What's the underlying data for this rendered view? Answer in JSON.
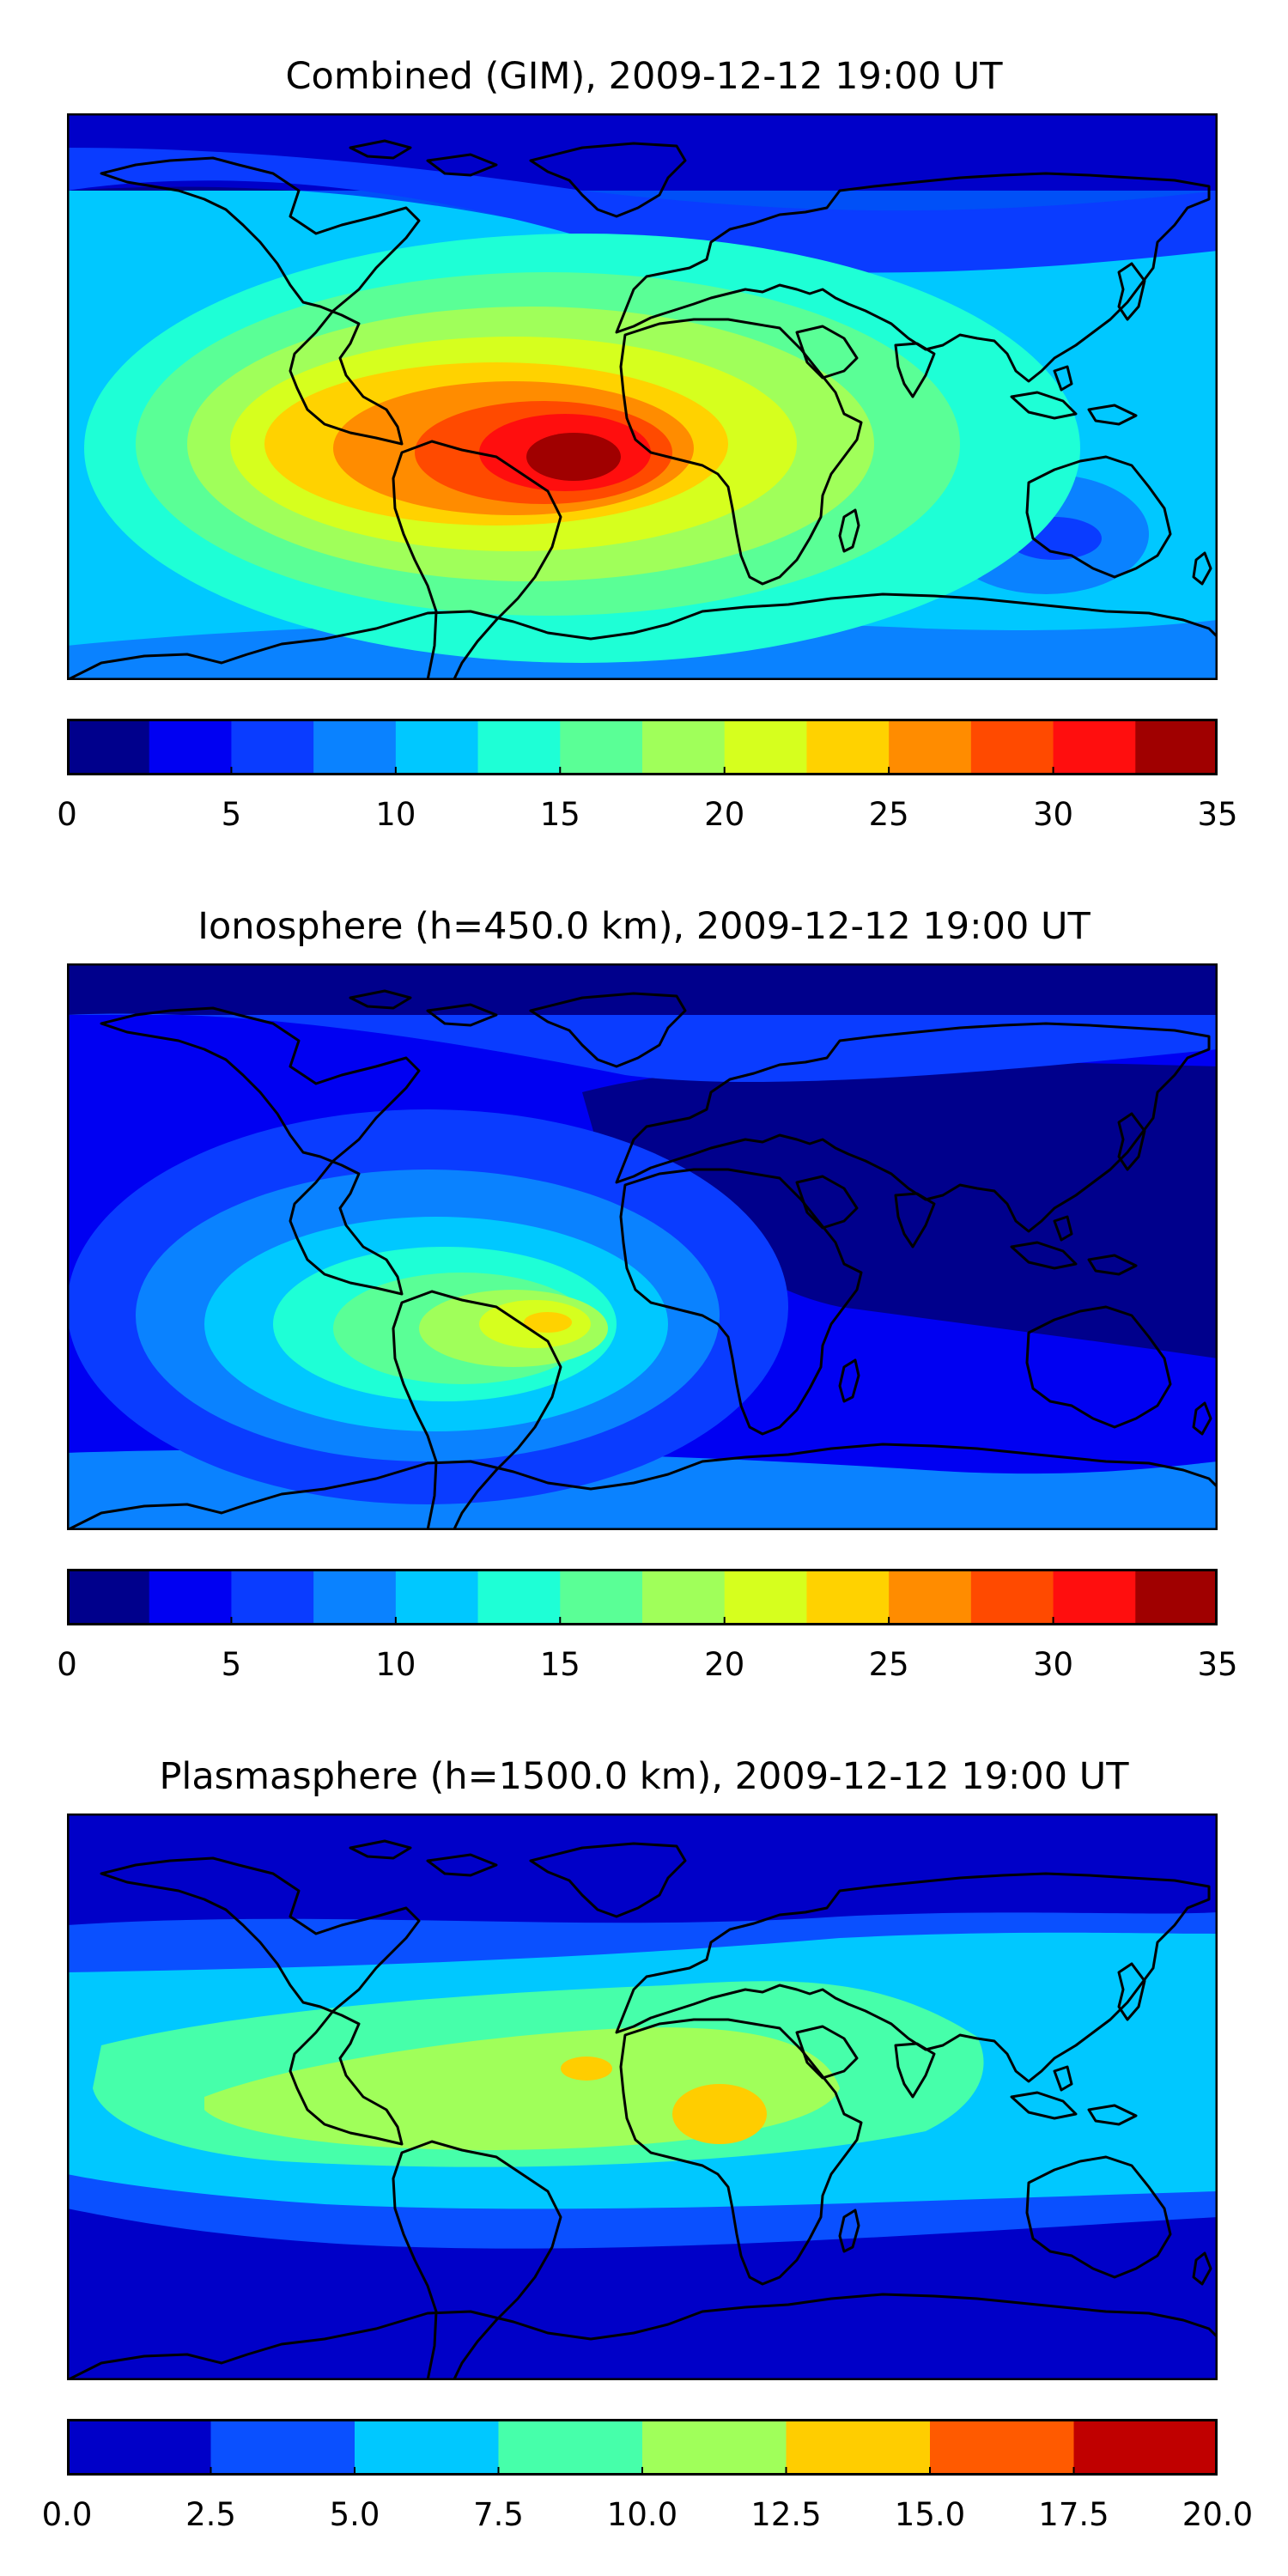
{
  "figure": {
    "panels": [
      {
        "title": "Combined (GIM), 2009-12-12 19:00 UT",
        "colorbar": {
          "ticks": [
            "0",
            "5",
            "10",
            "15",
            "20",
            "25",
            "30",
            "35"
          ],
          "range": [
            0,
            35
          ],
          "colors": [
            "#00008c",
            "#0000f2",
            "#0a3cff",
            "#0a82ff",
            "#00c8ff",
            "#1effd6",
            "#5aff96",
            "#a0ff5a",
            "#d6ff1e",
            "#ffd200",
            "#ff8c00",
            "#ff4a00",
            "#ff0e0e",
            "#a00000"
          ]
        }
      },
      {
        "title": "Ionosphere  (h=450.0 km), 2009-12-12 19:00 UT",
        "colorbar": {
          "ticks": [
            "0",
            "5",
            "10",
            "15",
            "20",
            "25",
            "30",
            "35"
          ],
          "range": [
            0,
            35
          ],
          "colors": [
            "#00008c",
            "#0000f2",
            "#0a3cff",
            "#0a82ff",
            "#00c8ff",
            "#1effd6",
            "#5aff96",
            "#a0ff5a",
            "#d6ff1e",
            "#ffd200",
            "#ff8c00",
            "#ff4a00",
            "#ff0e0e",
            "#a00000"
          ]
        }
      },
      {
        "title": "Plasmasphere (h=1500.0 km), 2009-12-12 19:00 UT",
        "colorbar": {
          "ticks": [
            "0.0",
            "2.5",
            "5.0",
            "7.5",
            "10.0",
            "12.5",
            "15.0",
            "17.5",
            "20.0"
          ],
          "range": [
            0,
            20
          ],
          "colors": [
            "#0000c8",
            "#0a50ff",
            "#00c8ff",
            "#46ffaa",
            "#a0ff5a",
            "#ffcd00",
            "#ff5a00",
            "#c00000"
          ]
        }
      }
    ]
  },
  "chart_data": [
    {
      "type": "heatmap",
      "title": "Combined (GIM), 2009-12-12 19:00 UT",
      "levels": [
        0,
        2.5,
        5,
        7.5,
        10,
        12.5,
        15,
        17.5,
        20,
        22.5,
        25,
        27.5,
        30,
        32.5,
        35
      ],
      "colorbar_range": [
        0,
        35
      ],
      "colorbar_ticks": [
        0,
        5,
        10,
        15,
        20,
        25,
        30,
        35
      ],
      "peak_approx": 32,
      "peak_region": "South America"
    },
    {
      "type": "heatmap",
      "title": "Ionosphere  (h=450.0 km), 2009-12-12 19:00 UT",
      "levels": [
        0,
        2.5,
        5,
        7.5,
        10,
        12.5,
        15,
        17.5,
        20,
        22.5,
        25,
        27.5,
        30,
        32.5,
        35
      ],
      "colorbar_range": [
        0,
        35
      ],
      "colorbar_ticks": [
        0,
        5,
        10,
        15,
        20,
        25,
        30,
        35
      ],
      "peak_approx": 24,
      "peak_region": "South America"
    },
    {
      "type": "heatmap",
      "title": "Plasmasphere (h=1500.0 km), 2009-12-12 19:00 UT",
      "levels": [
        0,
        2.5,
        5,
        7.5,
        10,
        12.5,
        15,
        17.5,
        20
      ],
      "colorbar_range": [
        0,
        20
      ],
      "colorbar_ticks": [
        0,
        2.5,
        5,
        7.5,
        10,
        12.5,
        15,
        17.5,
        20
      ],
      "peak_approx": 14,
      "peak_region": "Central Africa"
    }
  ]
}
